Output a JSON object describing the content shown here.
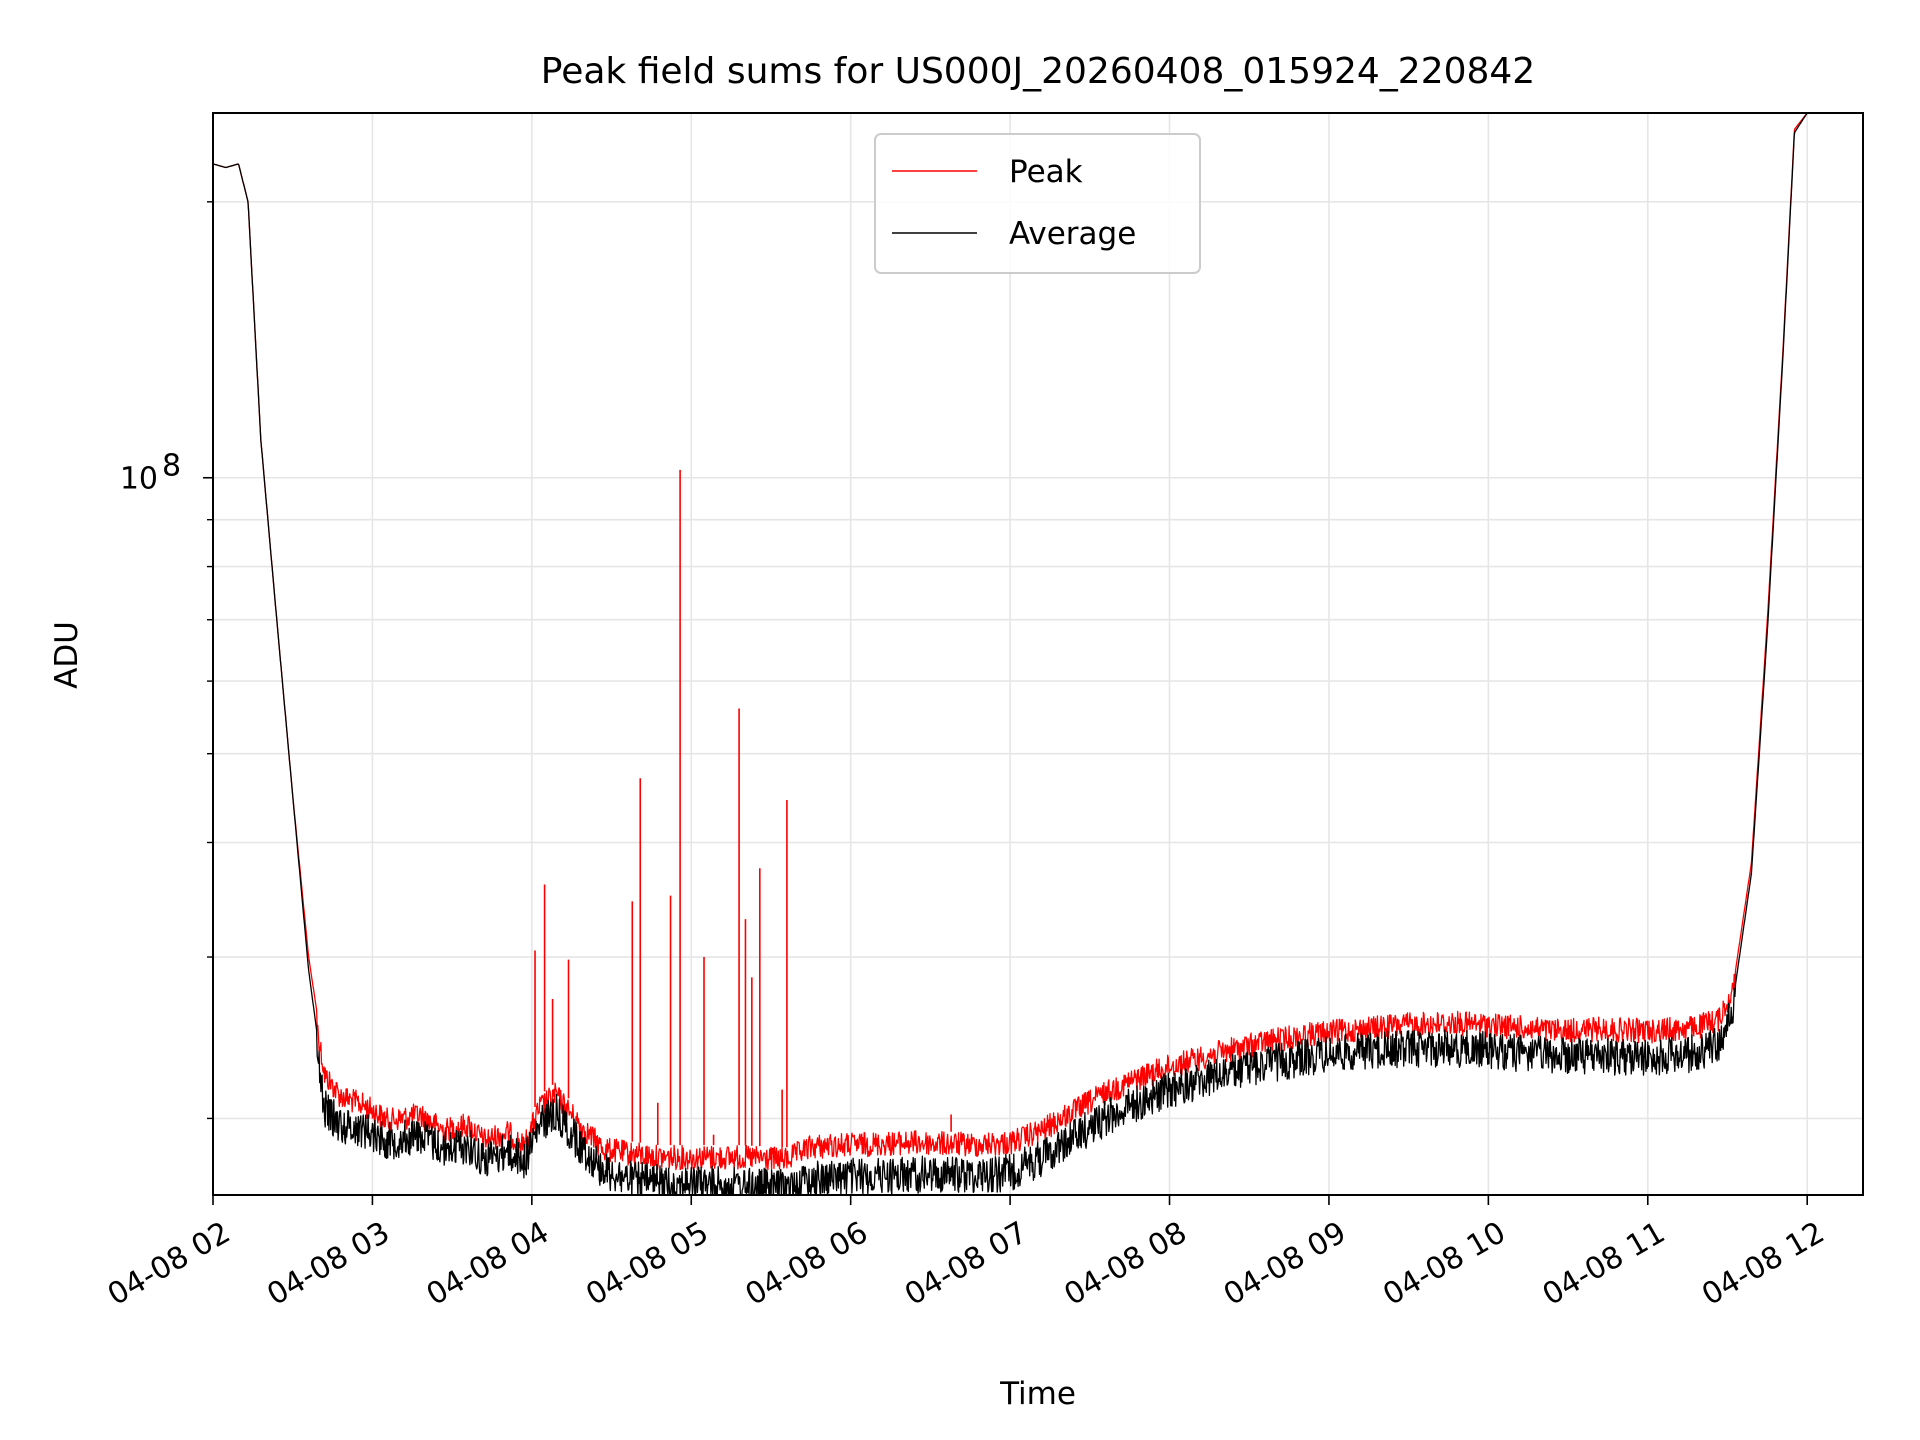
{
  "chart_data": {
    "type": "line",
    "title": "Peak field sums for US000J_20260408_015924_220842",
    "xlabel": "Time",
    "ylabel": "ADU",
    "yscale": "log",
    "ylim": [
      16500000,
      250000000
    ],
    "xlim": [
      2.0,
      12.35
    ],
    "x_unit": "hours on 04-08",
    "x_ticks": [
      {
        "value": 2,
        "label": "04-08 02"
      },
      {
        "value": 3,
        "label": "04-08 03"
      },
      {
        "value": 4,
        "label": "04-08 04"
      },
      {
        "value": 5,
        "label": "04-08 05"
      },
      {
        "value": 6,
        "label": "04-08 06"
      },
      {
        "value": 7,
        "label": "04-08 07"
      },
      {
        "value": 8,
        "label": "04-08 08"
      },
      {
        "value": 9,
        "label": "04-08 09"
      },
      {
        "value": 10,
        "label": "04-08 10"
      },
      {
        "value": 11,
        "label": "04-08 11"
      },
      {
        "value": 12,
        "label": "04-08 12"
      }
    ],
    "y_major_tick": {
      "value": 100000000,
      "base": "10",
      "exponent": "8"
    },
    "y_minor_ticks": [
      20000000,
      30000000,
      40000000,
      50000000,
      60000000,
      70000000,
      80000000,
      90000000,
      200000000
    ],
    "grid": true,
    "legend": {
      "position": "top-center",
      "entries": [
        "Peak",
        "Average"
      ]
    },
    "series": [
      {
        "name": "Peak",
        "color": "#ff0000",
        "points": [
          [
            2.0,
            220000000
          ],
          [
            2.08,
            218000000
          ],
          [
            2.16,
            220000000
          ],
          [
            2.22,
            200000000
          ],
          [
            2.3,
            110000000
          ],
          [
            2.4,
            70000000
          ],
          [
            2.5,
            45000000
          ],
          [
            2.6,
            30000000
          ],
          [
            2.7,
            23000000
          ],
          [
            2.8,
            21800000
          ],
          [
            2.95,
            21300000
          ],
          [
            3.1,
            20500000
          ],
          [
            3.3,
            20800000
          ],
          [
            3.45,
            20000000
          ],
          [
            3.6,
            20300000
          ],
          [
            3.7,
            19500000
          ],
          [
            3.85,
            19900000
          ],
          [
            3.95,
            19200000
          ],
          [
            4.05,
            21200000
          ],
          [
            4.15,
            21900000
          ],
          [
            4.3,
            20300000
          ],
          [
            4.45,
            19100000
          ],
          [
            4.6,
            18900000
          ],
          [
            4.8,
            18700000
          ],
          [
            5.0,
            18700000
          ],
          [
            5.3,
            18700000
          ],
          [
            5.6,
            18600000
          ],
          [
            5.75,
            19200000
          ],
          [
            6.0,
            19300000
          ],
          [
            6.4,
            19400000
          ],
          [
            6.8,
            19300000
          ],
          [
            7.0,
            19400000
          ],
          [
            7.2,
            20000000
          ],
          [
            7.4,
            21000000
          ],
          [
            7.6,
            22000000
          ],
          [
            7.8,
            22800000
          ],
          [
            8.0,
            23500000
          ],
          [
            8.3,
            24300000
          ],
          [
            8.6,
            25000000
          ],
          [
            8.9,
            25500000
          ],
          [
            9.2,
            25800000
          ],
          [
            9.5,
            26100000
          ],
          [
            9.8,
            26200000
          ],
          [
            10.1,
            26000000
          ],
          [
            10.4,
            25700000
          ],
          [
            10.7,
            25800000
          ],
          [
            11.0,
            25700000
          ],
          [
            11.3,
            25900000
          ],
          [
            11.45,
            26500000
          ],
          [
            11.55,
            29000000
          ],
          [
            11.65,
            38000000
          ],
          [
            11.75,
            70000000
          ],
          [
            11.85,
            140000000
          ],
          [
            11.92,
            240000000
          ],
          [
            12.0,
            250000000
          ]
        ],
        "spikes": [
          [
            4.02,
            30500000
          ],
          [
            4.08,
            36000000
          ],
          [
            4.13,
            27000000
          ],
          [
            4.23,
            29800000
          ],
          [
            4.63,
            34500000
          ],
          [
            4.68,
            47000000
          ],
          [
            4.79,
            20800000
          ],
          [
            4.87,
            35000000
          ],
          [
            4.93,
            102000000
          ],
          [
            5.08,
            30000000
          ],
          [
            5.14,
            19200000
          ],
          [
            5.3,
            56000000
          ],
          [
            5.34,
            33000000
          ],
          [
            5.38,
            28500000
          ],
          [
            5.43,
            37500000
          ],
          [
            5.57,
            21500000
          ],
          [
            5.6,
            44500000
          ],
          [
            6.63,
            20200000
          ]
        ]
      },
      {
        "name": "Average",
        "color": "#000000",
        "points": [
          [
            2.0,
            220000000
          ],
          [
            2.08,
            218000000
          ],
          [
            2.16,
            220000000
          ],
          [
            2.22,
            200000000
          ],
          [
            2.3,
            110000000
          ],
          [
            2.4,
            70000000
          ],
          [
            2.5,
            45000000
          ],
          [
            2.6,
            29000000
          ],
          [
            2.7,
            21500000
          ],
          [
            2.8,
            20600000
          ],
          [
            2.95,
            20400000
          ],
          [
            3.1,
            19800000
          ],
          [
            3.3,
            20100000
          ],
          [
            3.45,
            19400000
          ],
          [
            3.6,
            19600000
          ],
          [
            3.7,
            18900000
          ],
          [
            3.85,
            19300000
          ],
          [
            3.95,
            18800000
          ],
          [
            4.05,
            20600000
          ],
          [
            4.15,
            21300000
          ],
          [
            4.3,
            19600000
          ],
          [
            4.45,
            18400000
          ],
          [
            4.6,
            18000000
          ],
          [
            4.8,
            17800000
          ],
          [
            5.0,
            17800000
          ],
          [
            5.3,
            17700000
          ],
          [
            5.6,
            17600000
          ],
          [
            5.75,
            18000000
          ],
          [
            6.0,
            18100000
          ],
          [
            6.4,
            18200000
          ],
          [
            6.8,
            18200000
          ],
          [
            7.0,
            18300000
          ],
          [
            7.2,
            19000000
          ],
          [
            7.4,
            20000000
          ],
          [
            7.6,
            21000000
          ],
          [
            7.8,
            21800000
          ],
          [
            8.0,
            22500000
          ],
          [
            8.3,
            23300000
          ],
          [
            8.6,
            24000000
          ],
          [
            8.9,
            24500000
          ],
          [
            9.2,
            24800000
          ],
          [
            9.5,
            25000000
          ],
          [
            9.8,
            25000000
          ],
          [
            10.1,
            24800000
          ],
          [
            10.4,
            24500000
          ],
          [
            10.7,
            24500000
          ],
          [
            11.0,
            24400000
          ],
          [
            11.3,
            24700000
          ],
          [
            11.45,
            25300000
          ],
          [
            11.55,
            28000000
          ],
          [
            11.65,
            37000000
          ],
          [
            11.75,
            68000000
          ],
          [
            11.85,
            138000000
          ],
          [
            11.92,
            238000000
          ],
          [
            12.0,
            250000000
          ]
        ]
      }
    ]
  }
}
